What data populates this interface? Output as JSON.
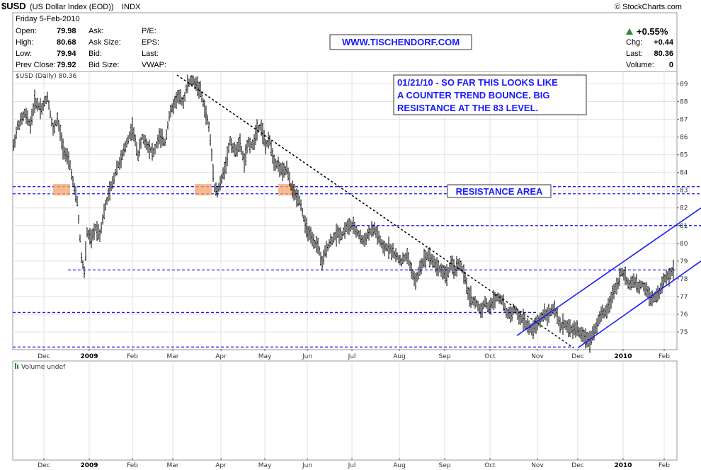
{
  "header": {
    "symbol": "$USD",
    "name": "(US Dollar Index (EOD))",
    "exchange": "INDX",
    "copyright": "© StockCharts.com",
    "date": "Friday  5-Feb-2010",
    "fields_left": [
      {
        "label": "Open:",
        "value": "79.98"
      },
      {
        "label": "High:",
        "value": "80.68"
      },
      {
        "label": "Low:",
        "value": "79.94"
      },
      {
        "label": "Prev Close:",
        "value": "79.92"
      }
    ],
    "fields_mid": [
      "Ask:",
      "Ask Size:",
      "Bid:",
      "Bid Size:"
    ],
    "fields_mid2": [
      "P/E:",
      "EPS:",
      "Last:",
      "VWAP:"
    ],
    "change_pct": "+0.55%",
    "fields_right": [
      {
        "label": "Chg:",
        "value": "+0.44"
      },
      {
        "label": "Last:",
        "value": "80.36"
      },
      {
        "label": "Volume:",
        "value": "0"
      }
    ],
    "up_color": "#2e8b2e"
  },
  "watermark": "WWW.TISCHENDORF.COM",
  "price_legend": "$USD (Daily) 80.36",
  "volume_legend": "Volume undef",
  "annotations": {
    "note": [
      "01/21/10 - SO FAR THIS LOOKS LIKE",
      "A COUNTER TREND BOUNCE. BIG",
      "RESISTANCE AT THE 83 LEVEL."
    ],
    "resistance": "RESISTANCE AREA"
  },
  "chart_data": {
    "type": "ohlc",
    "series": [
      {
        "name": "$USD (Daily)",
        "last": 80.36
      }
    ],
    "x_ticks": [
      "Dec",
      "2009",
      "Feb",
      "Mar",
      "Apr",
      "May",
      "Jun",
      "Jul",
      "Aug",
      "Sep",
      "Oct",
      "Nov",
      "Dec",
      "2010",
      "Feb"
    ],
    "x_ticks_bold": [
      "2009",
      "2010"
    ],
    "y_ticks": [
      75,
      76,
      77,
      78,
      79,
      80,
      81,
      82,
      83,
      84,
      85,
      86,
      87,
      88,
      89
    ],
    "ylim": [
      74.0,
      89.7
    ],
    "price_path": [
      [
        0,
        85.5
      ],
      [
        6,
        86.6
      ],
      [
        16,
        87.3
      ],
      [
        24,
        86.7
      ],
      [
        30,
        88.0
      ],
      [
        40,
        87.6
      ],
      [
        48,
        88.3
      ],
      [
        56,
        86.4
      ],
      [
        62,
        87.0
      ],
      [
        70,
        85.4
      ],
      [
        80,
        84.4
      ],
      [
        86,
        83.0
      ],
      [
        90,
        82.4
      ],
      [
        96,
        79.2
      ],
      [
        100,
        78.4
      ],
      [
        104,
        80.6
      ],
      [
        110,
        80.2
      ],
      [
        116,
        80.9
      ],
      [
        122,
        80.5
      ],
      [
        128,
        81.8
      ],
      [
        134,
        82.7
      ],
      [
        140,
        83.4
      ],
      [
        146,
        84.3
      ],
      [
        152,
        84.7
      ],
      [
        160,
        85.7
      ],
      [
        168,
        86.5
      ],
      [
        176,
        85.0
      ],
      [
        182,
        86.0
      ],
      [
        190,
        85.5
      ],
      [
        198,
        85.1
      ],
      [
        206,
        86.0
      ],
      [
        214,
        85.7
      ],
      [
        220,
        87.2
      ],
      [
        226,
        87.8
      ],
      [
        232,
        88.3
      ],
      [
        240,
        88.0
      ],
      [
        246,
        89.0
      ],
      [
        252,
        89.2
      ],
      [
        258,
        89.0
      ],
      [
        264,
        88.6
      ],
      [
        270,
        87.6
      ],
      [
        276,
        86.6
      ],
      [
        280,
        85.0
      ],
      [
        284,
        83.2
      ],
      [
        288,
        82.9
      ],
      [
        294,
        83.6
      ],
      [
        300,
        84.5
      ],
      [
        306,
        85.8
      ],
      [
        312,
        85.2
      ],
      [
        320,
        85.6
      ],
      [
        326,
        84.6
      ],
      [
        332,
        85.7
      ],
      [
        338,
        85.5
      ],
      [
        344,
        86.5
      ],
      [
        350,
        86.6
      ],
      [
        356,
        85.5
      ],
      [
        362,
        85.8
      ],
      [
        368,
        84.6
      ],
      [
        374,
        84.4
      ],
      [
        380,
        84.0
      ],
      [
        386,
        84.2
      ],
      [
        392,
        83.2
      ],
      [
        398,
        82.7
      ],
      [
        404,
        82.5
      ],
      [
        408,
        81.8
      ],
      [
        412,
        81.0
      ],
      [
        418,
        80.5
      ],
      [
        424,
        80.0
      ],
      [
        430,
        79.9
      ],
      [
        436,
        78.8
      ],
      [
        440,
        79.5
      ],
      [
        446,
        80.0
      ],
      [
        452,
        80.3
      ],
      [
        458,
        80.6
      ],
      [
        464,
        80.5
      ],
      [
        470,
        80.9
      ],
      [
        478,
        81.0
      ],
      [
        486,
        80.6
      ],
      [
        494,
        80.1
      ],
      [
        502,
        80.6
      ],
      [
        510,
        80.8
      ],
      [
        516,
        80.3
      ],
      [
        522,
        79.7
      ],
      [
        530,
        79.8
      ],
      [
        536,
        79.5
      ],
      [
        542,
        79.2
      ],
      [
        548,
        79.0
      ],
      [
        556,
        79.3
      ],
      [
        562,
        78.5
      ],
      [
        568,
        77.8
      ],
      [
        574,
        78.6
      ],
      [
        580,
        79.1
      ],
      [
        586,
        79.4
      ],
      [
        592,
        79.0
      ],
      [
        598,
        78.7
      ],
      [
        604,
        78.5
      ],
      [
        612,
        78.2
      ],
      [
        618,
        78.8
      ],
      [
        624,
        78.5
      ],
      [
        630,
        78.9
      ],
      [
        636,
        78.3
      ],
      [
        642,
        77.2
      ],
      [
        648,
        76.8
      ],
      [
        654,
        76.6
      ],
      [
        660,
        76.2
      ],
      [
        666,
        76.7
      ],
      [
        672,
        76.3
      ],
      [
        678,
        76.8
      ],
      [
        684,
        77.0
      ],
      [
        690,
        76.8
      ],
      [
        696,
        76.1
      ],
      [
        702,
        76.0
      ],
      [
        708,
        76.3
      ],
      [
        714,
        75.8
      ],
      [
        720,
        75.7
      ],
      [
        726,
        75.3
      ],
      [
        732,
        75.1
      ],
      [
        738,
        75.4
      ],
      [
        744,
        75.7
      ],
      [
        750,
        76.1
      ],
      [
        756,
        76.0
      ],
      [
        762,
        76.3
      ],
      [
        768,
        75.9
      ],
      [
        772,
        75.3
      ],
      [
        778,
        75.5
      ],
      [
        784,
        75.2
      ],
      [
        790,
        75.1
      ],
      [
        796,
        75.2
      ],
      [
        802,
        74.8
      ],
      [
        808,
        74.7
      ],
      [
        814,
        74.5
      ],
      [
        818,
        74.9
      ],
      [
        824,
        75.4
      ],
      [
        830,
        76.0
      ],
      [
        836,
        76.1
      ],
      [
        842,
        76.6
      ],
      [
        848,
        77.3
      ],
      [
        854,
        77.8
      ],
      [
        858,
        78.4
      ],
      [
        864,
        78.1
      ],
      [
        870,
        77.6
      ],
      [
        876,
        77.9
      ],
      [
        882,
        77.5
      ],
      [
        888,
        77.7
      ],
      [
        894,
        77.4
      ],
      [
        900,
        76.9
      ],
      [
        906,
        77.0
      ],
      [
        912,
        77.2
      ],
      [
        918,
        77.9
      ],
      [
        924,
        78.1
      ],
      [
        930,
        78.4
      ],
      [
        936,
        78.6
      ],
      [
        942,
        79.2
      ],
      [
        946,
        79.6
      ],
      [
        950,
        79.9
      ],
      [
        952,
        80.36
      ]
    ],
    "resistance_levels": [
      83.2,
      82.8
    ],
    "support_levels": [
      81.0,
      78.5,
      76.1
    ],
    "trendline": {
      "from": [
        250,
        89.5
      ],
      "to": [
        810,
        74.1
      ]
    },
    "channel_upper": {
      "from": [
        730,
        74.8
      ],
      "to": [
        990,
        82.0
      ]
    },
    "channel_lower": {
      "from": [
        816,
        74.1
      ],
      "to": [
        990,
        79.0
      ]
    },
    "resistance_zone_markers": [
      80,
      280,
      398
    ],
    "grid": true,
    "volume_panel": {
      "label": "Volume undef",
      "values": []
    }
  }
}
